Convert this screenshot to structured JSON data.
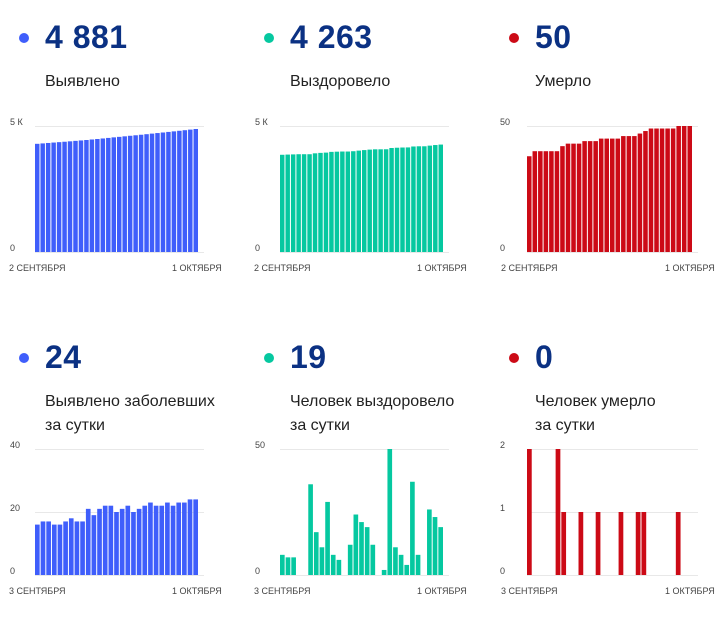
{
  "colors": {
    "confirmed": "#3f5efb",
    "recovered": "#05c8a0",
    "deaths": "#cc0a16",
    "number": "#0b3183"
  },
  "panels": [
    {
      "value": "4 881",
      "label": [
        "Выявлено"
      ],
      "color_key": "confirmed"
    },
    {
      "value": "4 263",
      "label": [
        "Выздоровело"
      ],
      "color_key": "recovered"
    },
    {
      "value": "50",
      "label": [
        "Умерло"
      ],
      "color_key": "deaths"
    },
    {
      "value": "24",
      "label": [
        "Выявлено заболевших",
        "за сутки"
      ],
      "color_key": "confirmed"
    },
    {
      "value": "19",
      "label": [
        "Человек выздоровело",
        "за сутки"
      ],
      "color_key": "recovered"
    },
    {
      "value": "0",
      "label": [
        "Человек умерло",
        "за сутки"
      ],
      "color_key": "deaths"
    }
  ],
  "chart_data": [
    {
      "type": "bar",
      "title": "",
      "x_start": "2 СЕНТЯБРЯ",
      "x_end": "1 ОКТЯБРЯ",
      "ylim": [
        0,
        5000
      ],
      "yticks": [
        {
          "v": 0,
          "label": "0"
        },
        {
          "v": 5000,
          "label": "5 К"
        }
      ],
      "grid": true,
      "values": [
        4293,
        4309,
        4326,
        4343,
        4359,
        4375,
        4392,
        4410,
        4427,
        4444,
        4465,
        4484,
        4505,
        4527,
        4549,
        4569,
        4590,
        4612,
        4632,
        4653,
        4675,
        4698,
        4720,
        4742,
        4765,
        4787,
        4810,
        4833,
        4857,
        4881
      ]
    },
    {
      "type": "bar",
      "title": "",
      "x_start": "2 СЕНТЯБРЯ",
      "x_end": "1 ОКТЯБРЯ",
      "ylim": [
        0,
        5000
      ],
      "yticks": [
        {
          "v": 0,
          "label": "0"
        },
        {
          "v": 5000,
          "label": "5 К"
        }
      ],
      "grid": true,
      "values": [
        3858,
        3866,
        3873,
        3880,
        3880,
        3880,
        3916,
        3933,
        3944,
        3973,
        3981,
        3987,
        3987,
        3999,
        4023,
        4044,
        4063,
        4075,
        4075,
        4077,
        4127,
        4138,
        4146,
        4150,
        4187,
        4195,
        4195,
        4221,
        4244,
        4263
      ]
    },
    {
      "type": "bar",
      "title": "",
      "x_start": "2 СЕНТЯБРЯ",
      "x_end": "1 ОКТЯБРЯ",
      "ylim": [
        0,
        50
      ],
      "yticks": [
        {
          "v": 0,
          "label": "0"
        },
        {
          "v": 50,
          "label": "50"
        }
      ],
      "grid": true,
      "values": [
        38,
        40,
        40,
        40,
        40,
        40,
        42,
        43,
        43,
        43,
        44,
        44,
        44,
        45,
        45,
        45,
        45,
        46,
        46,
        46,
        47,
        48,
        49,
        49,
        49,
        49,
        49,
        50,
        50,
        50
      ]
    },
    {
      "type": "bar",
      "title": "",
      "x_start": "3 СЕНТЯБРЯ",
      "x_end": "1 ОКТЯБРЯ",
      "ylim": [
        0,
        40
      ],
      "yticks": [
        {
          "v": 0,
          "label": "0"
        },
        {
          "v": 20,
          "label": "20"
        },
        {
          "v": 40,
          "label": "40"
        }
      ],
      "grid": true,
      "values": [
        16,
        17,
        17,
        16,
        16,
        17,
        18,
        17,
        17,
        21,
        19,
        21,
        22,
        22,
        20,
        21,
        22,
        20,
        21,
        22,
        23,
        22,
        22,
        23,
        22,
        23,
        23,
        24,
        24
      ]
    },
    {
      "type": "bar",
      "title": "",
      "x_start": "3 СЕНТЯБРЯ",
      "x_end": "1 ОКТЯБРЯ",
      "ylim": [
        0,
        50
      ],
      "yticks": [
        {
          "v": 0,
          "label": "0"
        },
        {
          "v": 50,
          "label": "50"
        }
      ],
      "grid": true,
      "values": [
        8,
        7,
        7,
        0,
        0,
        36,
        17,
        11,
        29,
        8,
        6,
        0,
        12,
        24,
        21,
        19,
        12,
        0,
        2,
        50,
        11,
        8,
        4,
        37,
        8,
        0,
        26,
        23,
        19
      ]
    },
    {
      "type": "bar",
      "title": "",
      "x_start": "3 СЕНТЯБРЯ",
      "x_end": "1 ОКТЯБРЯ",
      "ylim": [
        0,
        2
      ],
      "yticks": [
        {
          "v": 0,
          "label": "0"
        },
        {
          "v": 1,
          "label": "1"
        },
        {
          "v": 2,
          "label": "2"
        }
      ],
      "grid": true,
      "values": [
        2,
        0,
        0,
        0,
        0,
        2,
        1,
        0,
        0,
        1,
        0,
        0,
        1,
        0,
        0,
        0,
        1,
        0,
        0,
        1,
        1,
        0,
        0,
        0,
        0,
        0,
        1,
        0,
        0
      ]
    }
  ]
}
